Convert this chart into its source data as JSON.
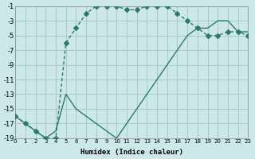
{
  "xlabel": "Humidex (Indice chaleur)",
  "background_color": "#cce8e8",
  "grid_color": "#aacccc",
  "line_color": "#2a7a6a",
  "xlim": [
    0,
    23
  ],
  "ylim": [
    -19,
    -1
  ],
  "xticks": [
    0,
    1,
    2,
    3,
    4,
    5,
    6,
    7,
    8,
    9,
    10,
    11,
    12,
    13,
    14,
    15,
    16,
    17,
    18,
    19,
    20,
    21,
    22,
    23
  ],
  "yticks": [
    -19,
    -17,
    -15,
    -13,
    -11,
    -9,
    -7,
    -5,
    -3,
    -1
  ],
  "curve1_x": [
    0,
    1,
    2,
    3,
    4,
    5,
    6,
    7,
    8,
    9,
    10,
    11,
    12,
    13,
    14,
    15,
    16,
    17,
    18,
    19,
    20,
    21,
    22,
    23
  ],
  "curve1_y": [
    -16,
    -17,
    -18,
    -19,
    -19,
    -6,
    -4,
    -2,
    -1,
    -1,
    -1,
    -1.5,
    -1.5,
    -1,
    -1,
    -1,
    -2,
    -3,
    -4,
    -5,
    -5,
    -4.5,
    -4.5,
    -5
  ],
  "curve2_x": [
    0,
    3,
    4,
    5,
    6,
    7,
    8,
    9,
    10,
    11,
    12,
    13,
    14,
    15,
    16,
    17,
    18,
    19,
    20,
    21,
    22,
    23
  ],
  "curve2_y": [
    -16,
    -19,
    -18,
    -13,
    -15,
    -16,
    -17,
    -18,
    -19,
    -17,
    -15,
    -13,
    -11,
    -9,
    -7,
    -5,
    -4,
    -4,
    -3,
    -3,
    -4.5,
    -4.5
  ],
  "markersize": 3
}
